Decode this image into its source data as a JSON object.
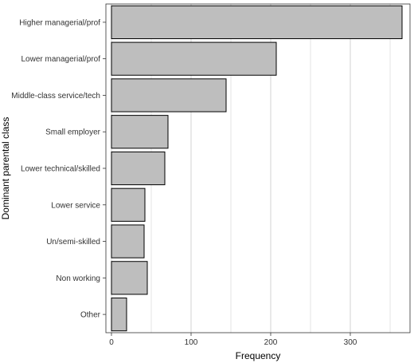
{
  "chart_data": {
    "type": "bar",
    "orientation": "horizontal",
    "categories": [
      "Higher managerial/prof",
      "Lower managerial/prof",
      "Middle-class service/tech",
      "Small employer",
      "Lower technical/skilled",
      "Lower service",
      "Un/semi-skilled",
      "Non working",
      "Other"
    ],
    "values": [
      365,
      207,
      144,
      71,
      67,
      42,
      41,
      45,
      19
    ],
    "xlabel": "Frequency",
    "ylabel": "Dominant parental class",
    "xlim": [
      -7,
      375
    ],
    "xticks": [
      0,
      100,
      200,
      300
    ],
    "grid": true,
    "colors": {
      "bar_fill": "#bebebe",
      "bar_stroke": "#000000",
      "grid": "#c8c8c8"
    }
  }
}
